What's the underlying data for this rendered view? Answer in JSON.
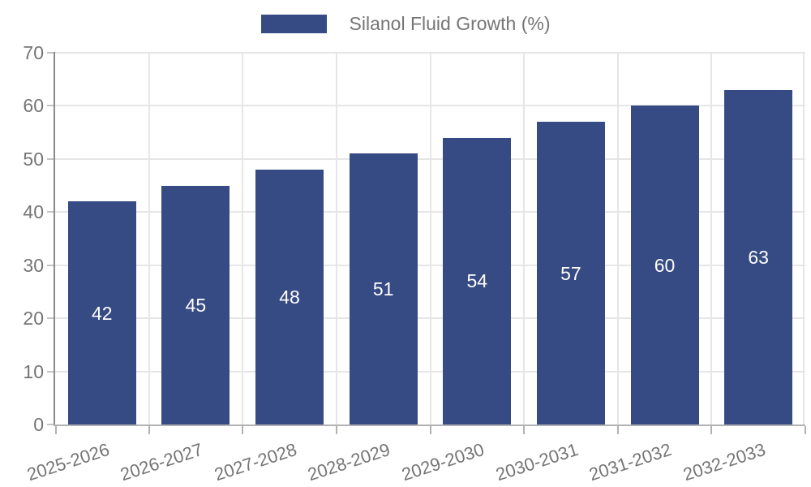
{
  "chart_data": {
    "type": "bar",
    "title": "",
    "legend": {
      "label": "Silanol Fluid Growth (%)",
      "position": "top-center"
    },
    "categories": [
      "2025-2026",
      "2026-2027",
      "2027-2028",
      "2028-2029",
      "2029-2030",
      "2030-2031",
      "2031-2032",
      "2032-2033"
    ],
    "series": [
      {
        "name": "Silanol Fluid Growth (%)",
        "values": [
          42,
          45,
          48,
          51,
          54,
          57,
          60,
          63
        ]
      }
    ],
    "value_labels_shown": true,
    "xlabel": "",
    "ylabel": "",
    "ylim": [
      0,
      70
    ],
    "yticks": [
      0,
      10,
      20,
      30,
      40,
      50,
      60,
      70
    ],
    "grid": true,
    "x_label_rotation_deg": -18,
    "colors": {
      "bar": "#364a84",
      "value_label": "#ffffff",
      "axis_text": "#757575",
      "gridline": "#e6e6e6",
      "y_axis_line": "#8a8a8a",
      "x_axis_line": "#b2b2b2",
      "background": "#ffffff"
    }
  }
}
